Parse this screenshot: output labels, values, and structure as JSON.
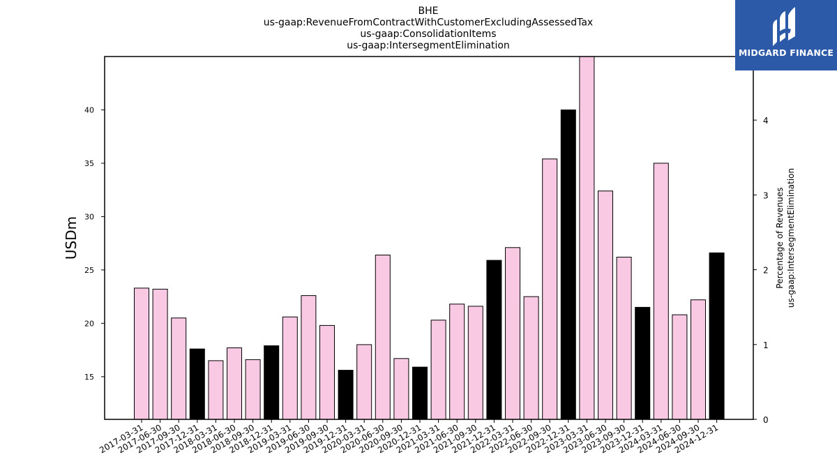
{
  "chart_data": {
    "type": "bar",
    "title": [
      "BHE",
      "us-gaap:RevenueFromContractWithCustomerExcludingAssessedTax",
      "us-gaap:ConsolidationItems",
      "us-gaap:IntersegmentElimination"
    ],
    "ylabel": "USDm",
    "ylabel_right": [
      "Percentage of Revenues",
      "us-gaap:IntersegmentElimination"
    ],
    "ylim": [
      11,
      45
    ],
    "yticks": [
      15,
      20,
      25,
      30,
      35,
      40
    ],
    "ylim_right": [
      0,
      4.85
    ],
    "yticks_right": [
      0,
      1,
      2,
      3,
      4
    ],
    "categories": [
      "2017-03-31",
      "2017-06-30",
      "2017-09-30",
      "2017-12-31",
      "2018-03-31",
      "2018-06-30",
      "2018-09-30",
      "2018-12-31",
      "2019-03-31",
      "2019-06-30",
      "2019-09-30",
      "2019-12-31",
      "2020-03-31",
      "2020-06-30",
      "2020-09-30",
      "2020-12-31",
      "2021-03-31",
      "2021-06-30",
      "2021-09-30",
      "2021-12-31",
      "2022-03-31",
      "2022-06-30",
      "2022-09-30",
      "2022-12-31",
      "2023-03-31",
      "2023-06-30",
      "2023-09-30",
      "2023-12-31",
      "2024-03-31",
      "2024-06-30",
      "2024-09-30",
      "2024-12-31"
    ],
    "values": [
      23.3,
      23.2,
      20.5,
      17.6,
      16.5,
      17.7,
      16.6,
      17.9,
      20.6,
      22.6,
      19.8,
      15.6,
      18.0,
      26.4,
      16.7,
      15.9,
      20.3,
      21.8,
      21.6,
      25.9,
      27.1,
      22.5,
      35.4,
      40.0,
      45.0,
      32.4,
      26.2,
      21.5,
      35.0,
      20.8,
      22.2,
      26.6
    ],
    "highlight": [
      false,
      false,
      false,
      true,
      false,
      false,
      false,
      true,
      false,
      false,
      false,
      true,
      false,
      false,
      false,
      true,
      false,
      false,
      false,
      true,
      false,
      false,
      false,
      true,
      false,
      false,
      false,
      true,
      false,
      false,
      false,
      true
    ],
    "colors": {
      "bar": "#f9c9e3",
      "highlight": "#000000",
      "edge": "#000000"
    },
    "grid": false,
    "legend": "none"
  },
  "logo": {
    "text": "MIDGARD FINANCE",
    "bg": "#2c5aa8"
  }
}
